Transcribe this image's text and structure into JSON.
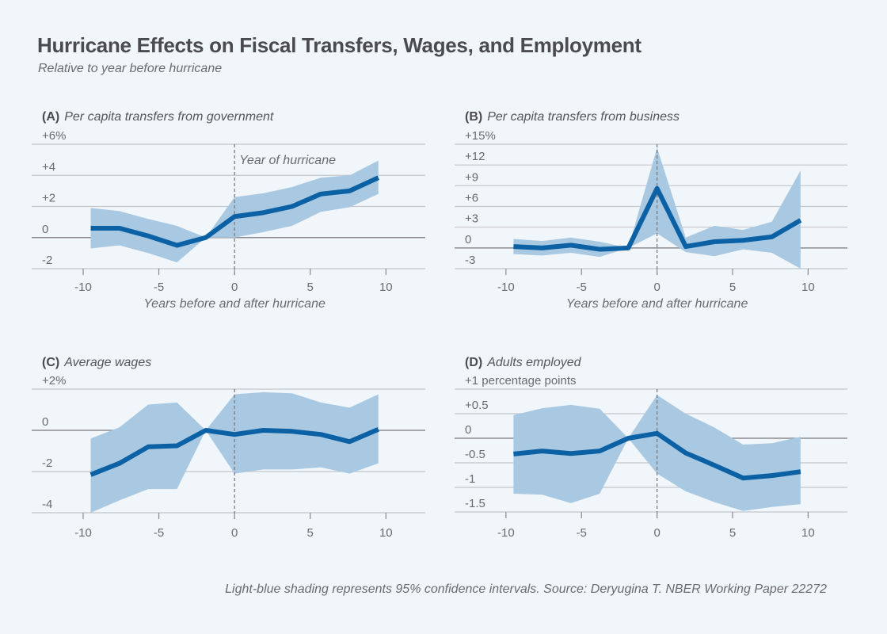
{
  "header": {
    "title": "Hurricane Effects on Fiscal Transfers, Wages, and Employment",
    "subtitle": "Relative to year before hurricane"
  },
  "footer": "Light-blue shading represents 95% confidence intervals. Source: Deryugina T. NBER Working Paper 22272",
  "colors": {
    "background": "#f1f6fa",
    "line": "#0b61a4",
    "band": "#a9c9e2",
    "grid": "#c4c6ca",
    "zero_line": "#8a8b90",
    "hurricane_marker": "#7a7b80"
  },
  "chart_data": [
    {
      "type": "line",
      "panel": "A",
      "letter": "(A)",
      "title": "Per capita transfers from government",
      "xlabel": "Years before and after hurricane",
      "ylabel": "",
      "annotation": "Year of hurricane",
      "annotation_x": 0,
      "xlim": [
        -13.4,
        12.6
      ],
      "ylim": [
        -2,
        6
      ],
      "xticks": [
        -10,
        -5,
        0,
        5,
        10
      ],
      "xtick_labels": [
        "-10",
        "-5",
        "0",
        "5",
        "10"
      ],
      "yticks": [
        6,
        4,
        2,
        0,
        -2
      ],
      "ytick_labels": [
        "+6%",
        "+4",
        "+2",
        "0",
        "-2"
      ],
      "grid": true,
      "x": [
        -9.5,
        -7.6,
        -5.7,
        -3.8,
        -1.9,
        0,
        1.9,
        3.8,
        5.7,
        7.6,
        9.5
      ],
      "series": [
        {
          "name": "Estimate",
          "values": [
            0.6,
            0.6,
            0.1,
            -0.5,
            0,
            1.35,
            1.6,
            2.0,
            2.8,
            3.0,
            3.85
          ]
        },
        {
          "name": "95% CI upper",
          "values": [
            1.9,
            1.7,
            1.2,
            0.75,
            0,
            2.6,
            2.85,
            3.25,
            3.85,
            4.0,
            4.95
          ]
        },
        {
          "name": "95% CI lower",
          "values": [
            -0.7,
            -0.5,
            -1.0,
            -1.6,
            0,
            0,
            0.35,
            0.75,
            1.65,
            1.95,
            2.8
          ]
        }
      ]
    },
    {
      "type": "line",
      "panel": "B",
      "letter": "(B)",
      "title": "Per capita transfers from business",
      "xlabel": "Years before and after hurricane",
      "ylabel": "",
      "annotation": "",
      "annotation_x": 0,
      "xlim": [
        -13.4,
        12.6
      ],
      "ylim": [
        -3,
        15
      ],
      "xticks": [
        -10,
        -5,
        0,
        5,
        10
      ],
      "xtick_labels": [
        "-10",
        "-5",
        "0",
        "5",
        "10"
      ],
      "yticks": [
        15,
        12,
        9,
        6,
        3,
        0,
        -3
      ],
      "ytick_labels": [
        "+15%",
        "+12",
        "+9",
        "+6",
        "+3",
        "0",
        "-3"
      ],
      "grid": true,
      "x": [
        -9.5,
        -7.6,
        -5.7,
        -3.8,
        -1.9,
        0,
        1.9,
        3.8,
        5.7,
        7.6,
        9.5
      ],
      "series": [
        {
          "name": "Estimate",
          "values": [
            0.2,
            0,
            0.4,
            -0.2,
            0,
            8.6,
            0.2,
            0.9,
            1.1,
            1.6,
            4.0
          ]
        },
        {
          "name": "95% CI upper",
          "values": [
            1.3,
            1.0,
            1.5,
            0.9,
            0,
            14.5,
            1.5,
            3.2,
            2.6,
            3.8,
            11.2
          ]
        },
        {
          "name": "95% CI lower",
          "values": [
            -0.9,
            -1.1,
            -0.7,
            -1.3,
            0,
            2.1,
            -0.6,
            -1.2,
            -0.2,
            -0.7,
            -3.0
          ]
        }
      ]
    },
    {
      "type": "line",
      "panel": "C",
      "letter": "(C)",
      "title": "Average wages",
      "xlabel": "",
      "ylabel": "",
      "annotation": "",
      "annotation_x": 0,
      "xlim": [
        -13.4,
        12.6
      ],
      "ylim": [
        -4,
        2
      ],
      "xticks": [
        -10,
        -5,
        0,
        5,
        10
      ],
      "xtick_labels": [
        "-10",
        "-5",
        "0",
        "5",
        "10"
      ],
      "yticks": [
        2,
        0,
        -2,
        -4
      ],
      "ytick_labels": [
        "+2%",
        "0",
        "-2",
        "-4"
      ],
      "grid": true,
      "x": [
        -9.5,
        -7.6,
        -5.7,
        -3.8,
        -1.9,
        0,
        1.9,
        3.8,
        5.7,
        7.6,
        9.5
      ],
      "series": [
        {
          "name": "Estimate",
          "values": [
            -2.15,
            -1.6,
            -0.8,
            -0.75,
            0,
            -0.2,
            0,
            -0.05,
            -0.2,
            -0.55,
            0.05
          ]
        },
        {
          "name": "95% CI upper",
          "values": [
            -0.4,
            0.15,
            1.25,
            1.35,
            0,
            1.75,
            1.85,
            1.8,
            1.35,
            1.1,
            1.75
          ]
        },
        {
          "name": "95% CI lower",
          "values": [
            -4.0,
            -3.4,
            -2.85,
            -2.85,
            0,
            -2.1,
            -1.9,
            -1.9,
            -1.8,
            -2.1,
            -1.6
          ]
        }
      ]
    },
    {
      "type": "line",
      "panel": "D",
      "letter": "(D)",
      "title": "Adults employed",
      "xlabel": "",
      "ylabel": "",
      "annotation": "",
      "annotation_x": 0,
      "xlim": [
        -13.4,
        12.6
      ],
      "ylim": [
        -1.5,
        1
      ],
      "xticks": [
        -10,
        -5,
        0,
        5,
        10
      ],
      "xtick_labels": [
        "-10",
        "-5",
        "0",
        "5",
        "10"
      ],
      "yticks": [
        1,
        0.5,
        0,
        -0.5,
        -1,
        -1.5
      ],
      "ytick_labels": [
        "+1 percentage points",
        "+0.5",
        "0",
        "-0.5",
        "-1",
        "-1.5"
      ],
      "grid": true,
      "x": [
        -9.5,
        -7.6,
        -5.7,
        -3.8,
        -1.9,
        0,
        1.9,
        3.8,
        5.7,
        7.6,
        9.5
      ],
      "series": [
        {
          "name": "Estimate",
          "values": [
            -0.32,
            -0.26,
            -0.31,
            -0.26,
            0,
            0.1,
            -0.3,
            -0.55,
            -0.81,
            -0.76,
            -0.68
          ]
        },
        {
          "name": "95% CI upper",
          "values": [
            0.47,
            0.61,
            0.68,
            0.6,
            0,
            0.88,
            0.5,
            0.22,
            -0.13,
            -0.1,
            0.03
          ]
        },
        {
          "name": "95% CI lower",
          "values": [
            -1.13,
            -1.15,
            -1.32,
            -1.13,
            0,
            -0.72,
            -1.08,
            -1.3,
            -1.48,
            -1.4,
            -1.34
          ]
        }
      ]
    }
  ]
}
